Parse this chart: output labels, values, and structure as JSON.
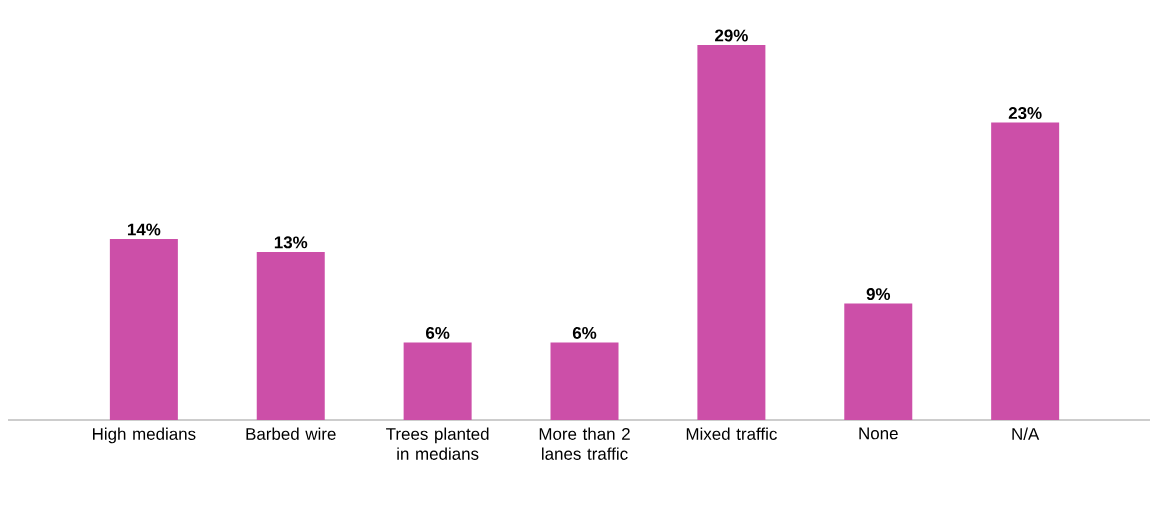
{
  "chart_data": {
    "type": "bar",
    "categories": [
      "High medians",
      "Barbed wire",
      "Trees planted in medians",
      "More than 2 lanes traffic",
      "Mixed traffic",
      "None",
      "N/A"
    ],
    "values": [
      14,
      13,
      6,
      6,
      29,
      9,
      23
    ],
    "value_labels": [
      "14%",
      "13%",
      "6%",
      "6%",
      "29%",
      "9%",
      "23%"
    ],
    "color": "#cc4fa8"
  }
}
